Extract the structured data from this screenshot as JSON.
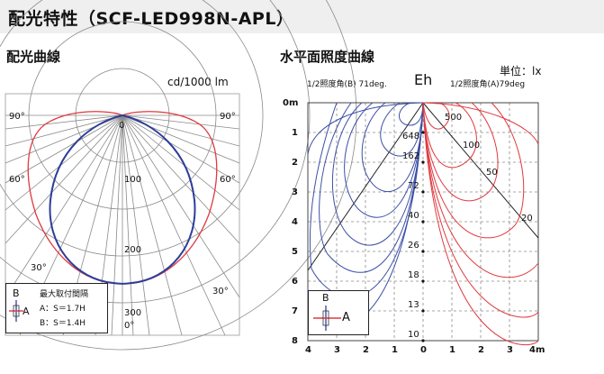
{
  "title": "配光特性（SCF-LED998N-APL）",
  "left_panel": {
    "heading": "配光曲線",
    "unit": "cd/1000 lm",
    "angle_labels": {
      "left_90": "90°",
      "right_90": "90°",
      "left_60": "60°",
      "right_60": "60°",
      "left_30": "30°",
      "right_30": "30°",
      "center_0": "0°",
      "top_0": "0"
    },
    "radial_labels": [
      "100",
      "200",
      "300"
    ],
    "legend": {
      "b_label": "B",
      "a_label": "A",
      "title": "最大取付間隔",
      "line_a": "A：S＝1.7H",
      "line_b": "B：S＝1.4H"
    }
  },
  "right_panel": {
    "heading": "水平面照度曲線",
    "unit": "単位：lx",
    "left_note": "1/2照度角(B) 71deg.",
    "eh": "Eh",
    "right_note": "1/2照度角(A)79deg",
    "y_labels": [
      "0m",
      "1",
      "2",
      "3",
      "4",
      "5",
      "6",
      "7",
      "8"
    ],
    "x_labels": [
      "4",
      "3",
      "2",
      "1",
      "0",
      "1",
      "2",
      "3",
      "4m"
    ],
    "center_values": [
      "648",
      "162",
      "72",
      "40",
      "26",
      "18",
      "13",
      "10"
    ],
    "red_labels": [
      "500",
      "100",
      "50",
      "20"
    ],
    "legend": {
      "b_label": "B",
      "a_label": "A"
    }
  },
  "colors": {
    "red": "#e0393e",
    "blue": "#3d4fa6",
    "dark_blue": "#2c3e9a",
    "grid": "#777777",
    "title_bg": "#efefef"
  }
}
